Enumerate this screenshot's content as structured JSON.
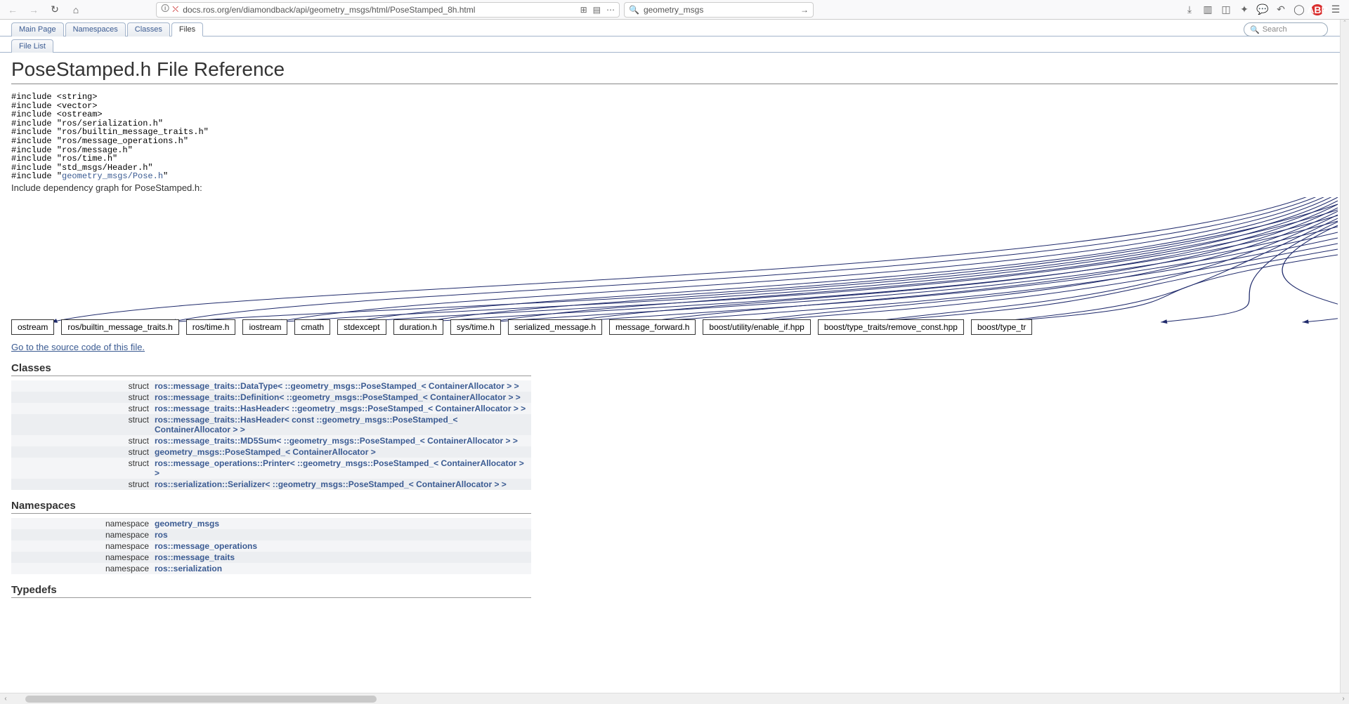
{
  "browser": {
    "url": "docs.ros.org/en/diamondback/api/geometry_msgs/html/PoseStamped_8h.html",
    "search_value": "geometry_msgs",
    "search_placeholder": "Search"
  },
  "tabs": {
    "main": [
      {
        "label": "Main Page",
        "active": false
      },
      {
        "label": "Namespaces",
        "active": false
      },
      {
        "label": "Classes",
        "active": false
      },
      {
        "label": "Files",
        "active": true
      }
    ],
    "sub": [
      {
        "label": "File List",
        "active": false
      }
    ],
    "search_placeholder": "Search"
  },
  "page": {
    "title": "PoseStamped.h File Reference",
    "includes": [
      "#include <string>",
      "#include <vector>",
      "#include <ostream>",
      "#include \"ros/serialization.h\"",
      "#include \"ros/builtin_message_traits.h\"",
      "#include \"ros/message_operations.h\"",
      "#include \"ros/message.h\"",
      "#include \"ros/time.h\"",
      "#include \"std_msgs/Header.h\""
    ],
    "include_link_prefix": "#include \"",
    "include_link_text": "geometry_msgs/Pose.h",
    "include_link_suffix": "\"",
    "dep_label": "Include dependency graph for PoseStamped.h:",
    "source_link": "Go to the source code of this file.",
    "graph_nodes": [
      "ostream",
      "ros/builtin_message_traits.h",
      "ros/time.h",
      "iostream",
      "cmath",
      "stdexcept",
      "duration.h",
      "sys/time.h",
      "serialized_message.h",
      "message_forward.h",
      "boost/utility/enable_if.hpp",
      "boost/type_traits/remove_const.hpp",
      "boost/type_tr"
    ],
    "edge_color": "#1f2a6b"
  },
  "classes": {
    "heading": "Classes",
    "rows": [
      {
        "kind": "struct",
        "name": "ros::message_traits::DataType< ::geometry_msgs::PoseStamped_< ContainerAllocator > >"
      },
      {
        "kind": "struct",
        "name": "ros::message_traits::Definition< ::geometry_msgs::PoseStamped_< ContainerAllocator > >"
      },
      {
        "kind": "struct",
        "name": "ros::message_traits::HasHeader< ::geometry_msgs::PoseStamped_< ContainerAllocator > >"
      },
      {
        "kind": "struct",
        "name": "ros::message_traits::HasHeader< const ::geometry_msgs::PoseStamped_< ContainerAllocator > >"
      },
      {
        "kind": "struct",
        "name": "ros::message_traits::MD5Sum< ::geometry_msgs::PoseStamped_< ContainerAllocator > >"
      },
      {
        "kind": "struct",
        "name": "geometry_msgs::PoseStamped_< ContainerAllocator >"
      },
      {
        "kind": "struct",
        "name": "ros::message_operations::Printer< ::geometry_msgs::PoseStamped_< ContainerAllocator > >"
      },
      {
        "kind": "struct",
        "name": "ros::serialization::Serializer< ::geometry_msgs::PoseStamped_< ContainerAllocator > >"
      }
    ]
  },
  "namespaces": {
    "heading": "Namespaces",
    "rows": [
      {
        "kind": "namespace",
        "name": "geometry_msgs"
      },
      {
        "kind": "namespace",
        "name": "ros"
      },
      {
        "kind": "namespace",
        "name": "ros::message_operations"
      },
      {
        "kind": "namespace",
        "name": "ros::message_traits"
      },
      {
        "kind": "namespace",
        "name": "ros::serialization"
      }
    ]
  },
  "typedefs": {
    "heading": "Typedefs"
  }
}
